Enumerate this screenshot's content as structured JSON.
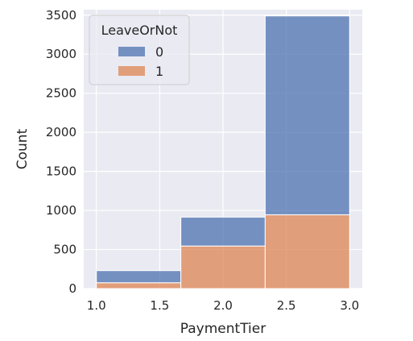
{
  "chart_data": {
    "type": "bar",
    "stacked": true,
    "xlabel": "PaymentTier",
    "ylabel": "Count",
    "xlim": [
      0.9,
      3.1
    ],
    "ylim": [
      0,
      3570
    ],
    "x_ticks": [
      1.0,
      1.5,
      2.0,
      2.5,
      3.0
    ],
    "x_tick_labels": [
      "1.0",
      "1.5",
      "2.0",
      "2.5",
      "3.0"
    ],
    "y_ticks": [
      0,
      500,
      1000,
      1500,
      2000,
      2500,
      3000,
      3500
    ],
    "y_tick_labels": [
      "0",
      "500",
      "1000",
      "1500",
      "2000",
      "2500",
      "3000",
      "3500"
    ],
    "grid": true,
    "legend": {
      "title": "LeaveOrNot",
      "placement": "top-left",
      "entries": [
        "0",
        "1"
      ]
    },
    "bins": [
      {
        "x_start": 1.0,
        "x_end": 1.667
      },
      {
        "x_start": 1.667,
        "x_end": 2.333
      },
      {
        "x_start": 2.333,
        "x_end": 3.0
      }
    ],
    "series": [
      {
        "name": "1",
        "color": "#dd8452",
        "values": [
          75,
          545,
          945
        ]
      },
      {
        "name": "0",
        "color": "#4c72b0",
        "values": [
          155,
          370,
          2545
        ]
      }
    ],
    "totals": [
      230,
      915,
      3490
    ]
  }
}
